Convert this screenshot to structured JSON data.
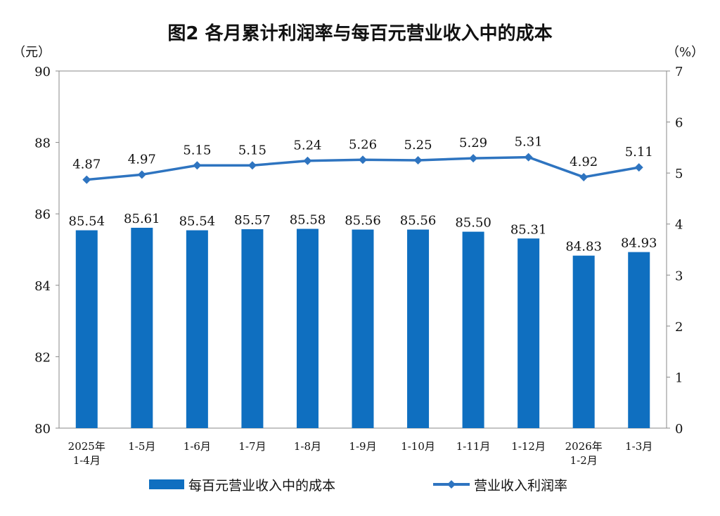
{
  "chart_data": {
    "type": "bar",
    "title": "图2  各月累计利润率与每百元营业收入中的成本",
    "left_unit": "（元）",
    "right_unit": "（%）",
    "categories": [
      [
        "2025年",
        "1-4月"
      ],
      [
        "1-5月"
      ],
      [
        "1-6月"
      ],
      [
        "1-7月"
      ],
      [
        "1-8月"
      ],
      [
        "1-9月"
      ],
      [
        "1-10月"
      ],
      [
        "1-11月"
      ],
      [
        "1-12月"
      ],
      [
        "2026年",
        "1-2月"
      ],
      [
        "1-3月"
      ]
    ],
    "series": [
      {
        "name": "每百元营业收入中的成本",
        "type": "bar",
        "axis": "left",
        "color": "#0f6fc0",
        "values": [
          85.54,
          85.61,
          85.54,
          85.57,
          85.58,
          85.56,
          85.56,
          85.5,
          85.31,
          84.83,
          84.93
        ],
        "labels": [
          "85.54",
          "85.61",
          "85.54",
          "85.57",
          "85.58",
          "85.56",
          "85.56",
          "85.50",
          "85.31",
          "84.83",
          "84.93"
        ]
      },
      {
        "name": "营业收入利润率",
        "type": "line",
        "axis": "right",
        "color": "#2e74c0",
        "values": [
          4.87,
          4.97,
          5.15,
          5.15,
          5.24,
          5.26,
          5.25,
          5.29,
          5.31,
          4.92,
          5.11
        ],
        "labels": [
          "4.87",
          "4.97",
          "5.15",
          "5.15",
          "5.24",
          "5.26",
          "5.25",
          "5.29",
          "5.31",
          "4.92",
          "5.11"
        ]
      }
    ],
    "left_axis": {
      "min": 80,
      "max": 90,
      "ticks": [
        "80",
        "82",
        "84",
        "86",
        "88",
        "90"
      ]
    },
    "right_axis": {
      "min": 0,
      "max": 7,
      "ticks": [
        "0",
        "1",
        "2",
        "3",
        "4",
        "5",
        "6",
        "7"
      ]
    },
    "legend_position": "bottom",
    "grid": false
  }
}
